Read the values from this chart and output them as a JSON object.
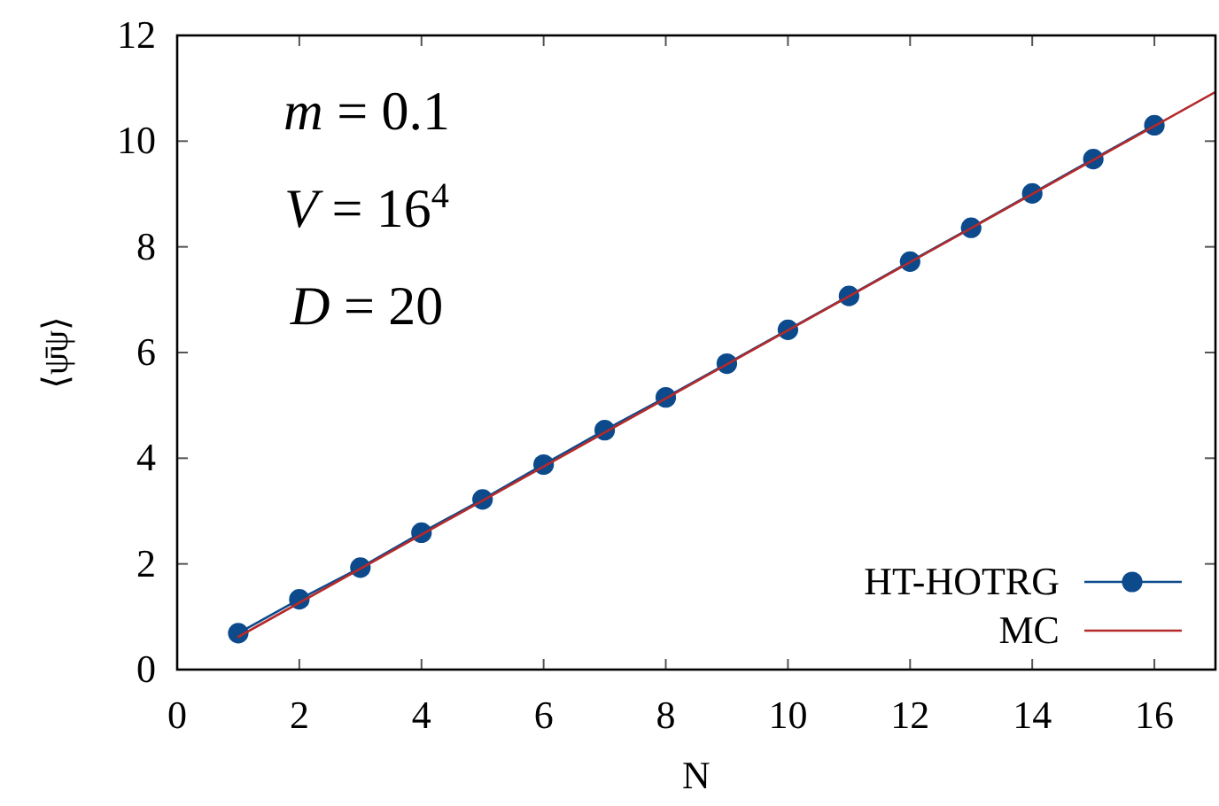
{
  "chart_data": {
    "type": "line",
    "xlabel": "N",
    "ylabel": "⟨ψ̄ψ⟩",
    "xlim": [
      0,
      17
    ],
    "xticks": [
      0,
      2,
      4,
      6,
      8,
      10,
      12,
      14,
      16
    ],
    "ylim": [
      0,
      12
    ],
    "yticks": [
      0,
      2,
      4,
      6,
      8,
      10,
      12
    ],
    "legend": "bottom right",
    "annotations": [
      "m = 0.1",
      "V = 16$^{4}$",
      "D = 20"
    ],
    "series": [
      {
        "name": "HT-HOTRG",
        "marker": "circle",
        "color": "#0c4a8c",
        "x": [
          1,
          2,
          3,
          4,
          5,
          6,
          7,
          8,
          9,
          10,
          11,
          12,
          13,
          14,
          15,
          16
        ],
        "values": [
          0.69,
          1.33,
          1.93,
          2.59,
          3.22,
          3.88,
          4.53,
          5.15,
          5.79,
          6.43,
          7.07,
          7.72,
          8.36,
          9.01,
          9.66,
          10.3
        ]
      },
      {
        "name": "MC",
        "marker": "none",
        "color": "#b52a2a",
        "x": [
          1,
          17
        ],
        "values": [
          0.62,
          10.93
        ]
      }
    ]
  }
}
